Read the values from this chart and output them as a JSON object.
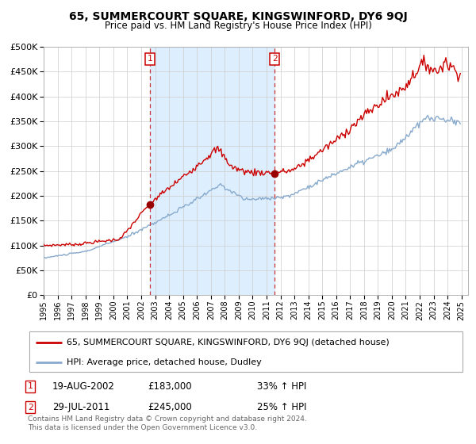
{
  "title1": "65, SUMMERCOURT SQUARE, KINGSWINFORD, DY6 9QJ",
  "title2": "Price paid vs. HM Land Registry's House Price Index (HPI)",
  "legend_line1": "65, SUMMERCOURT SQUARE, KINGSWINFORD, DY6 9QJ (detached house)",
  "legend_line2": "HPI: Average price, detached house, Dudley",
  "transaction1_date": "19-AUG-2002",
  "transaction1_price": "£183,000",
  "transaction1_hpi": "33% ↑ HPI",
  "transaction2_date": "29-JUL-2011",
  "transaction2_price": "£245,000",
  "transaction2_hpi": "25% ↑ HPI",
  "footer": "Contains HM Land Registry data © Crown copyright and database right 2024.\nThis data is licensed under the Open Government Licence v3.0.",
  "red_line_color": "#cc0000",
  "blue_line_color": "#88aacc",
  "bg_highlight_color": "#ddeeff",
  "marker_color": "#990000",
  "dashed_line_color": "#cc3333",
  "ylim_min": 0,
  "ylim_max": 500000,
  "ytick_step": 50000,
  "xlim_min": 1995,
  "xlim_max": 2025.5
}
